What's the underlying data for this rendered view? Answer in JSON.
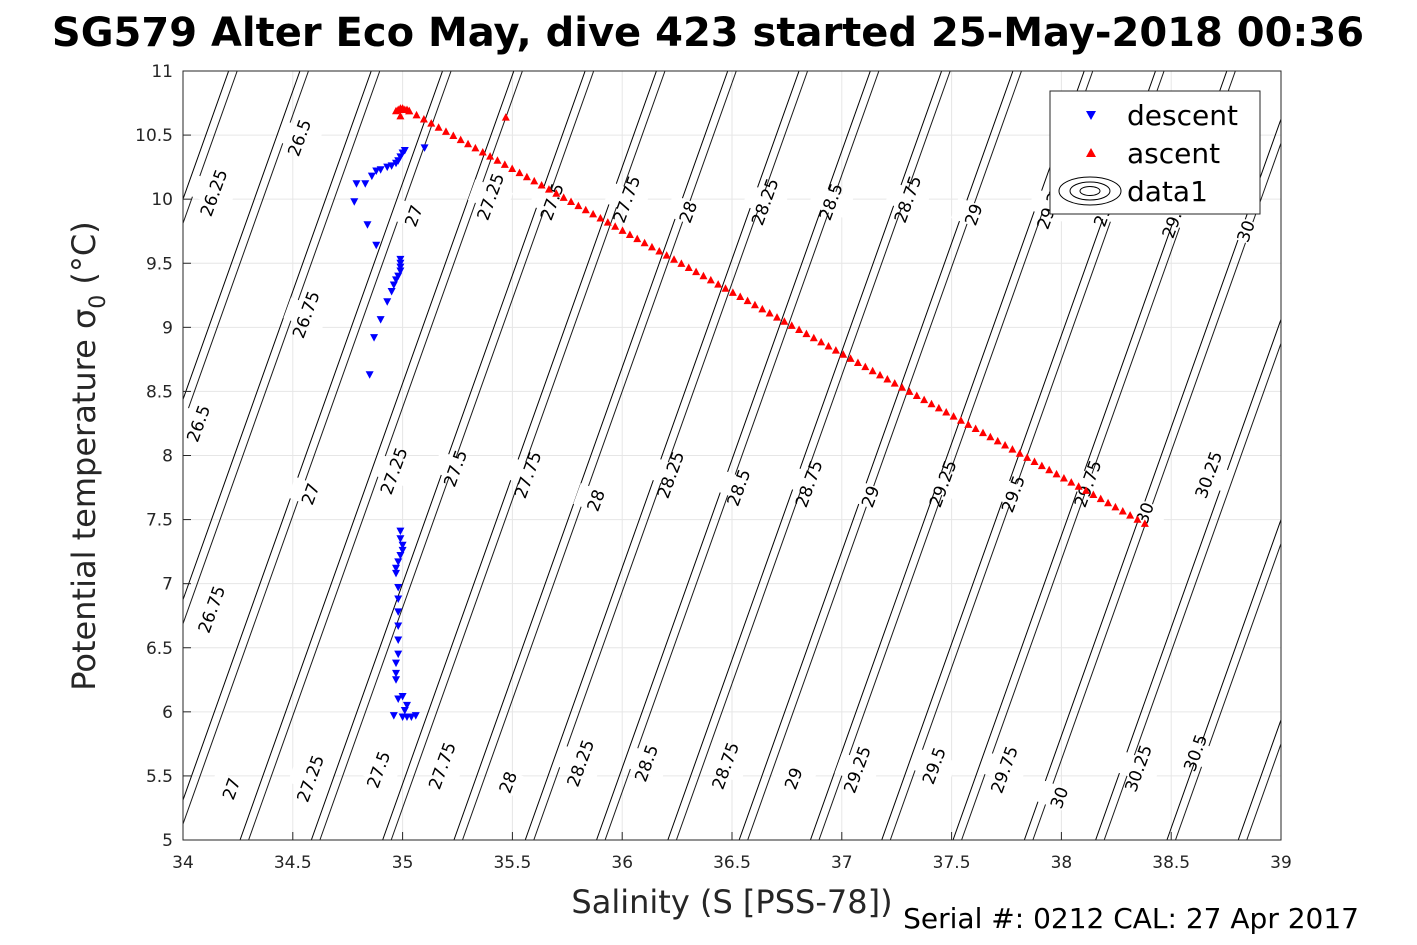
{
  "chart_data": {
    "type": "scatter",
    "title": "SG579 Alter Eco May, dive 423 started 25-May-2018 00:36",
    "xlabel": "Salinity (S [PSS-78])",
    "ylabel": "Potential temperature σ",
    "ylabel_sub": "0",
    "ylabel_tail": " (°C)",
    "xlim": [
      34,
      39
    ],
    "ylim": [
      5,
      11
    ],
    "xticks": [
      "34",
      "34.5",
      "35",
      "35.5",
      "36",
      "36.5",
      "37",
      "37.5",
      "38",
      "38.5",
      "39"
    ],
    "yticks": [
      "5",
      "5.5",
      "6",
      "6.5",
      "7",
      "7.5",
      "8",
      "8.5",
      "9",
      "9.5",
      "10",
      "10.5",
      "11"
    ],
    "grid": true,
    "legend_position": "top-right",
    "legend": [
      "descent",
      "ascent",
      "data1"
    ],
    "footer": "Serial #: 0212  CAL: 27 Apr 2017",
    "colors": {
      "descent": "#0000ff",
      "ascent": "#ff0000",
      "contour": "#000000",
      "grid": "#e6e6e6"
    },
    "series": [
      {
        "name": "descent",
        "marker": "triangle-down",
        "points": [
          [
            34.79,
            10.12
          ],
          [
            34.78,
            9.98
          ],
          [
            34.83,
            10.12
          ],
          [
            34.86,
            10.18
          ],
          [
            34.88,
            10.22
          ],
          [
            34.9,
            10.23
          ],
          [
            34.93,
            10.25
          ],
          [
            34.95,
            10.26
          ],
          [
            34.97,
            10.28
          ],
          [
            34.98,
            10.3
          ],
          [
            34.99,
            10.33
          ],
          [
            35.0,
            10.36
          ],
          [
            35.01,
            10.38
          ],
          [
            35.1,
            10.4
          ],
          [
            34.84,
            9.8
          ],
          [
            34.88,
            9.64
          ],
          [
            34.99,
            9.53
          ],
          [
            34.99,
            9.5
          ],
          [
            34.99,
            9.47
          ],
          [
            34.99,
            9.44
          ],
          [
            34.98,
            9.4
          ],
          [
            34.97,
            9.37
          ],
          [
            34.96,
            9.33
          ],
          [
            34.95,
            9.28
          ],
          [
            34.93,
            9.2
          ],
          [
            34.9,
            9.06
          ],
          [
            34.87,
            8.92
          ],
          [
            34.85,
            8.63
          ],
          [
            34.99,
            7.41
          ],
          [
            34.99,
            7.35
          ],
          [
            35.0,
            7.3
          ],
          [
            35.0,
            7.26
          ],
          [
            34.99,
            7.22
          ],
          [
            34.98,
            7.17
          ],
          [
            34.97,
            7.12
          ],
          [
            34.97,
            7.08
          ],
          [
            34.98,
            6.97
          ],
          [
            34.98,
            6.88
          ],
          [
            34.98,
            6.78
          ],
          [
            34.98,
            6.67
          ],
          [
            34.98,
            6.56
          ],
          [
            34.98,
            6.45
          ],
          [
            34.97,
            6.38
          ],
          [
            34.97,
            6.3
          ],
          [
            34.97,
            6.25
          ],
          [
            34.98,
            6.1
          ],
          [
            35.0,
            6.12
          ],
          [
            35.02,
            6.05
          ],
          [
            35.01,
            6.01
          ],
          [
            34.96,
            5.97
          ],
          [
            35.0,
            5.96
          ],
          [
            35.02,
            5.96
          ],
          [
            35.04,
            5.96
          ],
          [
            35.06,
            5.97
          ]
        ]
      },
      {
        "name": "ascent",
        "marker": "triangle-up",
        "points": [
          [
            34.97,
            10.69
          ],
          [
            34.98,
            10.7
          ],
          [
            34.99,
            10.71
          ],
          [
            35.0,
            10.71
          ],
          [
            35.01,
            10.7
          ],
          [
            35.02,
            10.7
          ],
          [
            35.03,
            10.69
          ],
          [
            34.99,
            10.65
          ],
          [
            35.47,
            10.64
          ]
        ],
        "line_from": [
          35.03,
          10.69
        ],
        "line_to": [
          38.38,
          7.47
        ],
        "line_count": 100
      }
    ],
    "contours": {
      "levels": [
        "26.25",
        "26.5",
        "26.75",
        "27",
        "27.25",
        "27.5",
        "27.75",
        "28",
        "28.25",
        "28.5",
        "28.75",
        "29",
        "29.25",
        "29.5",
        "29.75",
        "30",
        "30.25",
        "30.5"
      ],
      "line_values": [
        26.25,
        26.5,
        26.75,
        27,
        27.25,
        27.5,
        27.75,
        28,
        28.25,
        28.5,
        28.75,
        29,
        29.25,
        29.5,
        29.75,
        30,
        30.25,
        30.5,
        30.75,
        31,
        31.25,
        31.5
      ],
      "labels": [
        {
          "text": "26.25",
          "s": 34.14,
          "t": 10.05
        },
        {
          "text": "26.5",
          "s": 34.53,
          "t": 10.48
        },
        {
          "text": "26.75",
          "s": 34.56,
          "t": 9.1
        },
        {
          "text": "27",
          "s": 35.05,
          "t": 9.87
        },
        {
          "text": "26.5",
          "s": 34.07,
          "t": 8.25
        },
        {
          "text": "26.75",
          "s": 34.13,
          "t": 6.8
        },
        {
          "text": "27",
          "s": 34.58,
          "t": 7.7
        },
        {
          "text": "27",
          "s": 34.22,
          "t": 5.4
        },
        {
          "text": "27.25",
          "s": 34.58,
          "t": 5.48
        },
        {
          "text": "27.25",
          "s": 34.96,
          "t": 7.88
        },
        {
          "text": "27.5",
          "s": 34.89,
          "t": 5.55
        },
        {
          "text": "27.25",
          "s": 35.4,
          "t": 10.02
        },
        {
          "text": "27.5",
          "s": 35.24,
          "t": 7.9
        },
        {
          "text": "27.75",
          "s": 35.18,
          "t": 5.58
        },
        {
          "text": "27.5",
          "s": 35.68,
          "t": 9.98
        },
        {
          "text": "27.75",
          "s": 35.57,
          "t": 7.85
        },
        {
          "text": "28",
          "s": 35.48,
          "t": 5.45
        },
        {
          "text": "27.75",
          "s": 36.02,
          "t": 10.0
        },
        {
          "text": "28",
          "s": 35.88,
          "t": 7.65
        },
        {
          "text": "28.25",
          "s": 35.81,
          "t": 5.6
        },
        {
          "text": "28",
          "s": 36.3,
          "t": 9.9
        },
        {
          "text": "28.25",
          "s": 36.22,
          "t": 7.85
        },
        {
          "text": "28.5",
          "s": 36.11,
          "t": 5.6
        },
        {
          "text": "28.25",
          "s": 36.65,
          "t": 9.98
        },
        {
          "text": "28.5",
          "s": 36.53,
          "t": 7.75
        },
        {
          "text": "28.75",
          "s": 36.47,
          "t": 5.58
        },
        {
          "text": "28.5",
          "s": 36.95,
          "t": 9.98
        },
        {
          "text": "28.75",
          "s": 36.85,
          "t": 7.78
        },
        {
          "text": "29",
          "s": 36.78,
          "t": 5.48
        },
        {
          "text": "28.75",
          "s": 37.3,
          "t": 10.0
        },
        {
          "text": "29",
          "s": 37.13,
          "t": 7.68
        },
        {
          "text": "29.25",
          "s": 37.07,
          "t": 5.55
        },
        {
          "text": "29",
          "s": 37.6,
          "t": 9.88
        },
        {
          "text": "29.25",
          "s": 37.46,
          "t": 7.78
        },
        {
          "text": "29.5",
          "s": 37.42,
          "t": 5.58
        },
        {
          "text": "29.25",
          "s": 37.95,
          "t": 9.95
        },
        {
          "text": "29.5",
          "s": 37.78,
          "t": 7.7
        },
        {
          "text": "29.75",
          "s": 37.74,
          "t": 5.55
        },
        {
          "text": "29.75",
          "s": 38.12,
          "t": 7.78
        },
        {
          "text": "30",
          "s": 37.99,
          "t": 5.33
        },
        {
          "text": "30",
          "s": 38.38,
          "t": 7.55
        },
        {
          "text": "30.25",
          "s": 38.35,
          "t": 5.56
        },
        {
          "text": "30.25",
          "s": 38.67,
          "t": 7.85
        },
        {
          "text": "30.5",
          "s": 38.61,
          "t": 5.68
        },
        {
          "text": "30",
          "s": 38.84,
          "t": 9.75
        },
        {
          "text": "29.5",
          "s": 38.2,
          "t": 9.93
        },
        {
          "text": "29.75",
          "s": 38.52,
          "t": 9.88
        }
      ]
    }
  }
}
